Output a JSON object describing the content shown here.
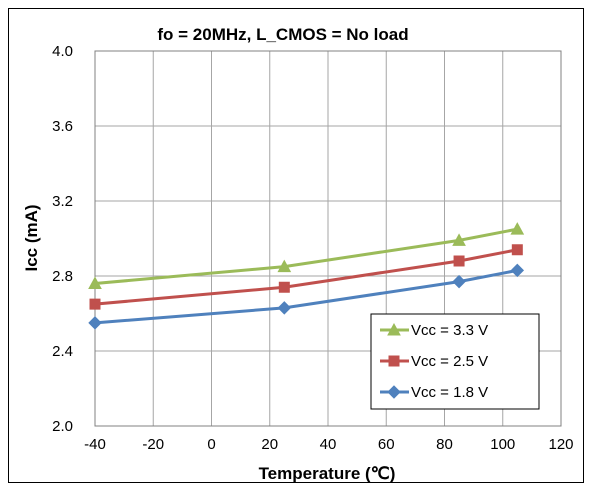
{
  "chart_data": {
    "type": "line",
    "title": "fo = 20MHz, L_CMOS = No load",
    "xlabel": "Temperature (℃)",
    "ylabel": "Icc (mA)",
    "xlim": [
      -40,
      120
    ],
    "ylim": [
      2.0,
      4.0
    ],
    "x_ticks": [
      "-40",
      "-20",
      "0",
      "20",
      "40",
      "60",
      "80",
      "100",
      "120"
    ],
    "y_ticks": [
      "2.0",
      "2.4",
      "2.8",
      "3.2",
      "3.6",
      "4.0"
    ],
    "x_tick_values": [
      -40,
      -20,
      0,
      20,
      40,
      60,
      80,
      100,
      120
    ],
    "y_tick_values": [
      2.0,
      2.4,
      2.8,
      3.2,
      3.6,
      4.0
    ],
    "grid": true,
    "legend_position": "bottom-right",
    "series": [
      {
        "name": "Vcc = 3.3 V",
        "color": "#9BBB59",
        "marker": "triangle",
        "x": [
          -40,
          25,
          85,
          105
        ],
        "y": [
          2.76,
          2.85,
          2.99,
          3.05
        ]
      },
      {
        "name": "Vcc = 2.5 V",
        "color": "#C0504D",
        "marker": "square",
        "x": [
          -40,
          25,
          85,
          105
        ],
        "y": [
          2.65,
          2.74,
          2.88,
          2.94
        ]
      },
      {
        "name": "Vcc = 1.8 V",
        "color": "#4F81BD",
        "marker": "diamond",
        "x": [
          -40,
          25,
          85,
          105
        ],
        "y": [
          2.55,
          2.63,
          2.77,
          2.83
        ]
      }
    ]
  }
}
